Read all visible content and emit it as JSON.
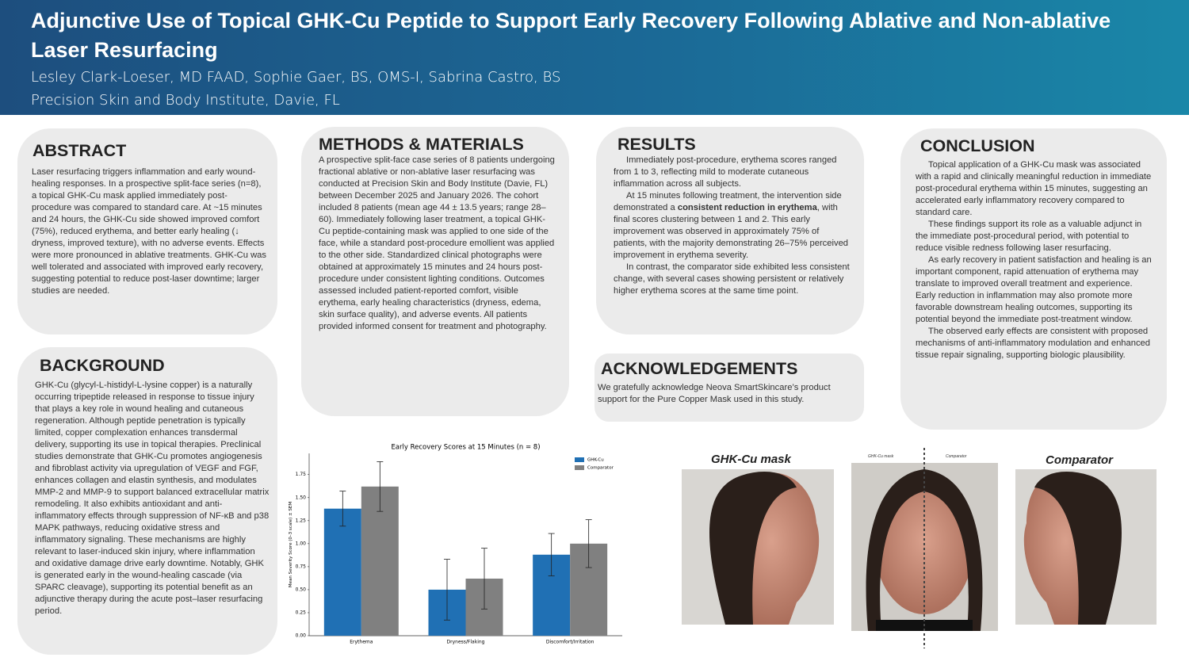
{
  "header": {
    "title": "Adjunctive Use of  Topical GHK-Cu Peptide to Support Early Recovery Following Ablative and Non-ablative Laser Resurfacing",
    "authors": "Lesley Clark-Loeser, MD FAAD, Sophie Gaer, BS, OMS-I, Sabrina Castro, BS",
    "affiliation": "Precision Skin and Body Institute, Davie, FL"
  },
  "abstract": {
    "heading": "ABSTRACT",
    "text": "Laser resurfacing triggers inflammation and early wound-healing responses. In a prospective split-face series (n=8), a topical GHK-Cu mask applied immediately post-procedure was compared to standard care. At ~15 minutes and 24 hours, the GHK-Cu side showed improved comfort (75%), reduced erythema, and better early healing (↓ dryness, improved texture), with no adverse events. Effects were more pronounced in ablative treatments. GHK-Cu was well tolerated and associated with improved early recovery, suggesting potential to reduce post-laser downtime; larger studies are needed."
  },
  "background": {
    "heading": "BACKGROUND",
    "text": "GHK-Cu (glycyl-L-histidyl-L-lysine copper) is a naturally occurring tripeptide released in response to tissue injury that plays a key role in wound healing and cutaneous regeneration. Although peptide penetration is typically limited, copper complexation enhances transdermal delivery, supporting its use in topical therapies. Preclinical studies demonstrate that GHK-Cu promotes angiogenesis and fibroblast activity via upregulation of VEGF and FGF, enhances collagen and elastin synthesis, and modulates MMP-2 and MMP-9 to support balanced extracellular matrix remodeling. It also exhibits antioxidant and anti-inflammatory effects through suppression of NF-κB and p38 MAPK pathways, reducing oxidative stress and inflammatory signaling. These mechanisms are highly relevant to laser-induced skin injury, where inflammation and oxidative damage drive early downtime. Notably, GHK is generated early in the wound-healing cascade (via SPARC cleavage), supporting its potential benefit as an adjunctive therapy during the acute post–laser resurfacing period."
  },
  "methods": {
    "heading": "METHODS & MATERIALS",
    "text": "A prospective split-face case series of 8 patients undergoing fractional ablative or non-ablative laser resurfacing was conducted at Precision Skin and Body Institute (Davie, FL) between December 2025 and January 2026. The cohort included 8 patients (mean age 44 ± 13.5 years; range 28–60). Immediately following laser treatment, a topical GHK-Cu peptide-containing mask was applied to one side of the face, while a standard post-procedure emollient was applied to the other side. Standardized clinical photographs were obtained at approximately 15 minutes and 24 hours post-procedure under consistent lighting conditions. Outcomes assessed included patient-reported comfort, visible erythema, early healing characteristics (dryness, edema, skin surface quality), and adverse events. All patients provided informed consent for treatment and photography."
  },
  "results": {
    "heading": "RESULTS",
    "paragraphs": [
      "Immediately post-procedure, erythema scores ranged from 1 to 3, reflecting mild to moderate cutaneous inflammation across all subjects.",
      [
        "At 15 minutes following treatment, the intervention side demonstrated a ",
        "consistent reduction in erythema",
        ", with final scores clustering between 1 and 2. This early improvement was observed in approximately 75% of patients, with the majority demonstrating 26–75% perceived improvement in erythema severity."
      ],
      "In contrast, the comparator side exhibited less consistent change, with several cases showing persistent or relatively higher erythema scores at the same time point."
    ]
  },
  "acknowledgements": {
    "heading": "ACKNOWLEDGEMENTS",
    "text": "We gratefully acknowledge Neova SmartSkincare’s product support for the Pure Copper Mask used in this study."
  },
  "conclusion": {
    "heading": "CONCLUSION",
    "paragraphs": [
      "Topical application of a GHK-Cu mask was associated with a rapid and clinically meaningful reduction in immediate post-procedural erythema within 15 minutes, suggesting an accelerated early inflammatory recovery compared to standard care.",
      "These findings support its role as a valuable adjunct in the immediate post-procedural period, with potential to reduce visible redness following laser resurfacing.",
      "As early recovery in patient satisfaction and healing is an important component, rapid attenuation of erythema may translate to improved overall treatment and experience. Early reduction in inflammation may also promote more favorable downstream healing outcomes, supporting its potential beyond the immediate post-treatment window.",
      "The observed early effects are consistent with proposed mechanisms of anti-inflammatory modulation and enhanced tissue repair signaling, supporting biologic plausibility."
    ]
  },
  "photos": {
    "left_caption": "GHK-Cu mask",
    "right_caption": "Comparator",
    "center_left_label": "GHK-Cu mask",
    "center_right_label": "Comparator"
  },
  "chart_data": {
    "type": "bar",
    "title": "Early Recovery Scores at 15 Minutes (n = 8)",
    "y_label": "Mean Severity Score (0–3 scale) ± SEM",
    "categories": [
      "Erythema",
      "Dryness/Flaking",
      "Discomfort/Irritation"
    ],
    "series": [
      {
        "name": "GHK-Cu",
        "color": "#2070b4",
        "values": [
          1.38,
          0.5,
          0.88
        ],
        "errors": [
          0.19,
          0.33,
          0.23
        ]
      },
      {
        "name": "Comparator",
        "color": "#808080",
        "values": [
          1.62,
          0.62,
          1.0
        ],
        "errors": [
          0.27,
          0.33,
          0.26
        ]
      }
    ],
    "ylim": [
      0,
      1.98
    ],
    "yticks": [
      {
        "value": 0,
        "label": "0.00"
      },
      {
        "value": 0.25,
        "label": "0.25"
      },
      {
        "value": 0.5,
        "label": "0.50"
      },
      {
        "value": 0.75,
        "label": "0.75"
      },
      {
        "value": 1,
        "label": "1.00"
      },
      {
        "value": 1.25,
        "label": "1.25"
      },
      {
        "value": 1.5,
        "label": "1.50"
      },
      {
        "value": 1.75,
        "label": "1.75"
      }
    ],
    "legend": "upper right"
  }
}
